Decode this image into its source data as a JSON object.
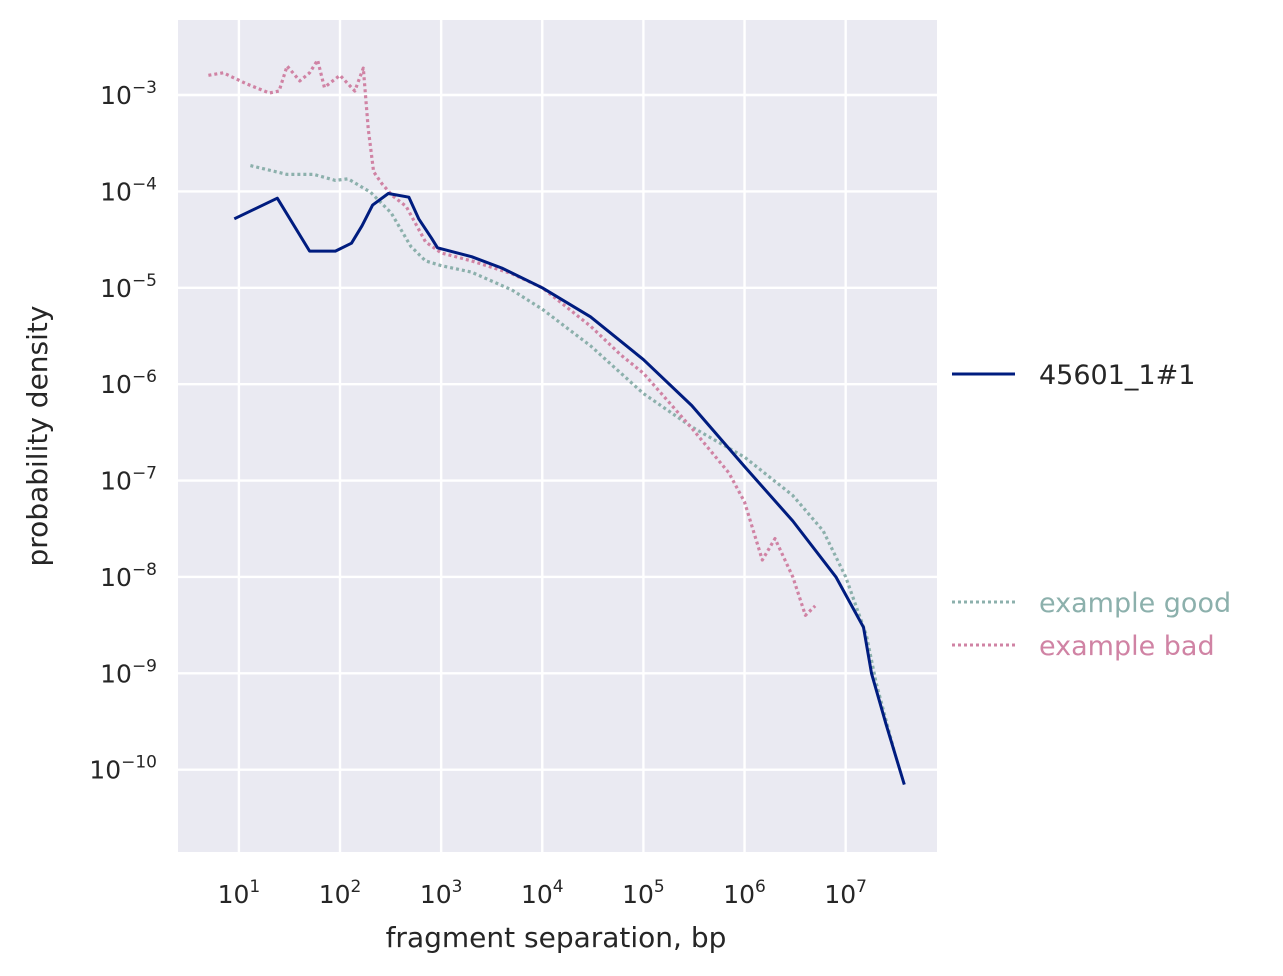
{
  "chart_data": {
    "type": "line",
    "title": "",
    "xlabel": "fragment separation, bp",
    "ylabel": "probability density",
    "xscale": "log",
    "yscale": "log",
    "xlim": [
      2.5,
      80000000
    ],
    "ylim": [
      1.4e-11,
      0.006
    ],
    "grid": true,
    "x_ticks": [
      {
        "base": "10",
        "exp": "1",
        "value": 10
      },
      {
        "base": "10",
        "exp": "2",
        "value": 100
      },
      {
        "base": "10",
        "exp": "3",
        "value": 1000
      },
      {
        "base": "10",
        "exp": "4",
        "value": 10000
      },
      {
        "base": "10",
        "exp": "5",
        "value": 100000
      },
      {
        "base": "10",
        "exp": "6",
        "value": 1000000
      },
      {
        "base": "10",
        "exp": "7",
        "value": 10000000
      }
    ],
    "y_ticks": [
      {
        "base": "10",
        "exp": "−3",
        "value": 0.001
      },
      {
        "base": "10",
        "exp": "−4",
        "value": 0.0001
      },
      {
        "base": "10",
        "exp": "−5",
        "value": 1e-05
      },
      {
        "base": "10",
        "exp": "−6",
        "value": 1e-06
      },
      {
        "base": "10",
        "exp": "−7",
        "value": 1e-07
      },
      {
        "base": "10",
        "exp": "−8",
        "value": 1e-08
      },
      {
        "base": "10",
        "exp": "−9",
        "value": 1e-09
      },
      {
        "base": "10",
        "exp": "−10",
        "value": 1e-10
      }
    ],
    "legend_placement": "right, outside plot",
    "series": [
      {
        "name": "45601_1#1",
        "color": "#001c7f",
        "style": "solid",
        "points": [
          [
            9,
            5.2e-05
          ],
          [
            24,
            8.5e-05
          ],
          [
            50,
            2.4e-05
          ],
          [
            90,
            2.4e-05
          ],
          [
            130,
            2.9e-05
          ],
          [
            165,
            4.4e-05
          ],
          [
            210,
            7.2e-05
          ],
          [
            300,
            9.5e-05
          ],
          [
            480,
            8.7e-05
          ],
          [
            600,
            5.2e-05
          ],
          [
            800,
            3.3e-05
          ],
          [
            920,
            2.6e-05
          ],
          [
            2000,
            2.1e-05
          ],
          [
            4000,
            1.6e-05
          ],
          [
            10000,
            1e-05
          ],
          [
            30000,
            5e-06
          ],
          [
            100000,
            1.8e-06
          ],
          [
            300000,
            6e-07
          ],
          [
            1000000,
            1.4e-07
          ],
          [
            3000000,
            3.8e-08
          ],
          [
            8000000,
            1e-08
          ],
          [
            15000000,
            3e-09
          ],
          [
            18000000,
            1e-09
          ],
          [
            25000000,
            3e-10
          ],
          [
            38000000,
            7e-11
          ]
        ]
      },
      {
        "name": "example good",
        "color": "#8cb0ac",
        "style": "dotted",
        "points": [
          [
            13,
            0.000185
          ],
          [
            30,
            0.00015
          ],
          [
            55,
            0.00015
          ],
          [
            90,
            0.00013
          ],
          [
            120,
            0.000135
          ],
          [
            200,
            9.8e-05
          ],
          [
            320,
            6e-05
          ],
          [
            500,
            2.7e-05
          ],
          [
            700,
            1.9e-05
          ],
          [
            1000,
            1.7e-05
          ],
          [
            2000,
            1.45e-05
          ],
          [
            5000,
            9.5e-06
          ],
          [
            10000,
            6e-06
          ],
          [
            30000,
            2.5e-06
          ],
          [
            100000,
            8e-07
          ],
          [
            300000,
            3.6e-07
          ],
          [
            1000000,
            1.75e-07
          ],
          [
            3000000,
            7e-08
          ],
          [
            6000000,
            3e-08
          ],
          [
            10000000,
            1e-08
          ],
          [
            16000000,
            2.5e-09
          ],
          [
            20000000,
            8e-10
          ],
          [
            30000000,
            1.6e-10
          ]
        ]
      },
      {
        "name": "example bad",
        "color": "#d083a4",
        "style": "dotted",
        "points": [
          [
            5,
            0.0016
          ],
          [
            7,
            0.0017
          ],
          [
            12,
            0.0013
          ],
          [
            20,
            0.00105
          ],
          [
            25,
            0.0011
          ],
          [
            30,
            0.002
          ],
          [
            40,
            0.0014
          ],
          [
            50,
            0.0017
          ],
          [
            60,
            0.0023
          ],
          [
            70,
            0.0012
          ],
          [
            100,
            0.0016
          ],
          [
            140,
            0.0011
          ],
          [
            170,
            0.0019
          ],
          [
            190,
            0.00045
          ],
          [
            215,
            0.00016
          ],
          [
            260,
            0.00012
          ],
          [
            330,
            9e-05
          ],
          [
            450,
            7e-05
          ],
          [
            700,
            3e-05
          ],
          [
            1000,
            2.3e-05
          ],
          [
            2000,
            1.9e-05
          ],
          [
            5000,
            1.4e-05
          ],
          [
            10000,
            1e-05
          ],
          [
            30000,
            4e-06
          ],
          [
            60000,
            2e-06
          ],
          [
            100000,
            1.3e-06
          ],
          [
            300000,
            3.5e-07
          ],
          [
            700000,
            1.2e-07
          ],
          [
            1000000,
            6e-08
          ],
          [
            1500000,
            1.5e-08
          ],
          [
            2000000,
            2.5e-08
          ],
          [
            3000000,
            1e-08
          ],
          [
            4000000,
            4e-09
          ],
          [
            5000000,
            5e-09
          ]
        ]
      }
    ]
  }
}
